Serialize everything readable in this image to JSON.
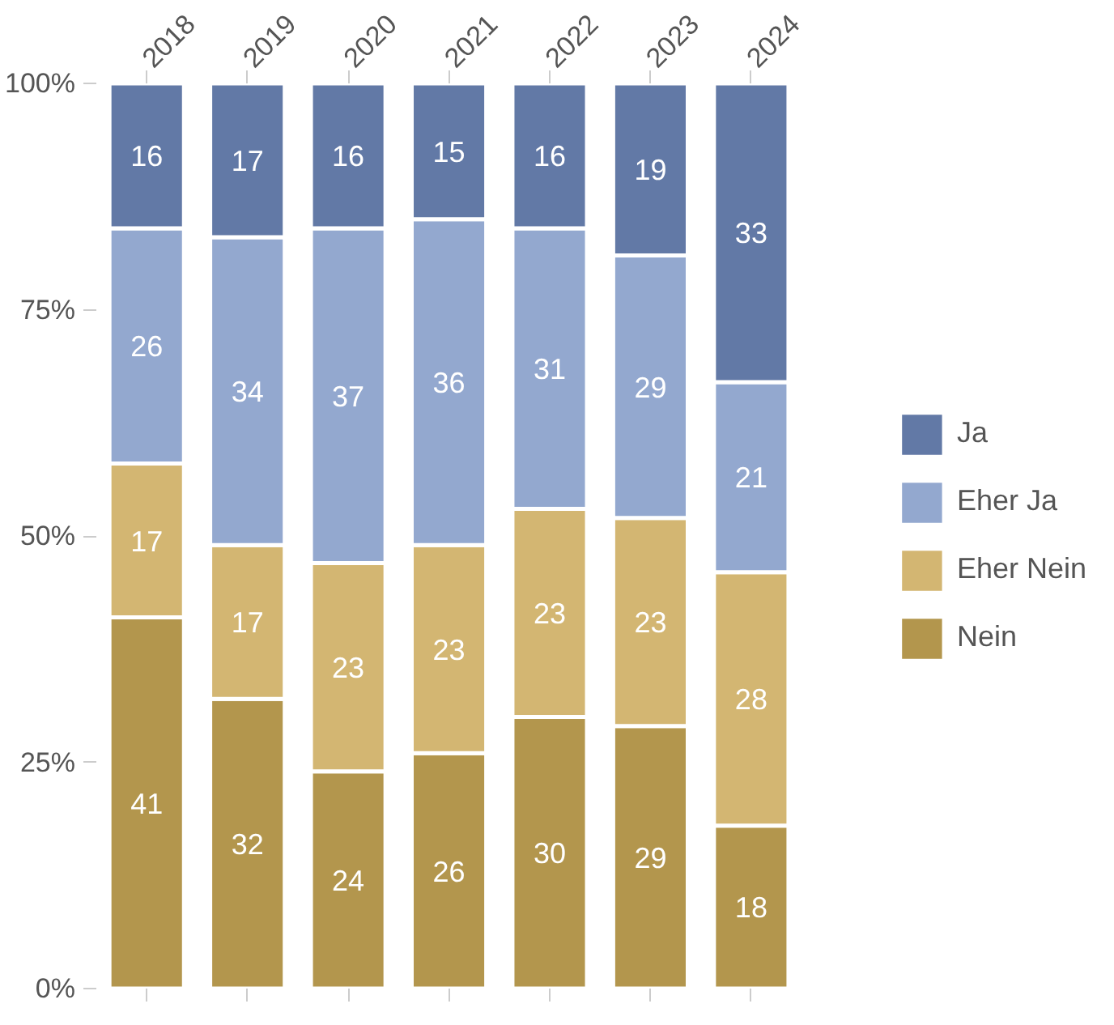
{
  "chart_data": {
    "type": "bar",
    "stacked": true,
    "categories": [
      "2018",
      "2019",
      "2020",
      "2021",
      "2022",
      "2023",
      "2024"
    ],
    "series": [
      {
        "name": "Nein",
        "color": "#b3964d",
        "values": [
          41,
          32,
          24,
          26,
          30,
          29,
          18
        ]
      },
      {
        "name": "Eher Nein",
        "color": "#d3b672",
        "values": [
          17,
          17,
          23,
          23,
          23,
          23,
          28
        ]
      },
      {
        "name": "Eher Ja",
        "color": "#93a8cf",
        "values": [
          26,
          34,
          37,
          36,
          31,
          29,
          21
        ]
      },
      {
        "name": "Ja",
        "color": "#6279a6",
        "values": [
          16,
          17,
          16,
          15,
          16,
          19,
          33
        ]
      }
    ],
    "ylim": [
      0,
      100
    ],
    "yticks": [
      {
        "value": 0,
        "label": "0%"
      },
      {
        "value": 25,
        "label": "25%"
      },
      {
        "value": 50,
        "label": "50%"
      },
      {
        "value": 75,
        "label": "75%"
      },
      {
        "value": 100,
        "label": "100%"
      }
    ],
    "data_labels": true,
    "legend": "right"
  }
}
